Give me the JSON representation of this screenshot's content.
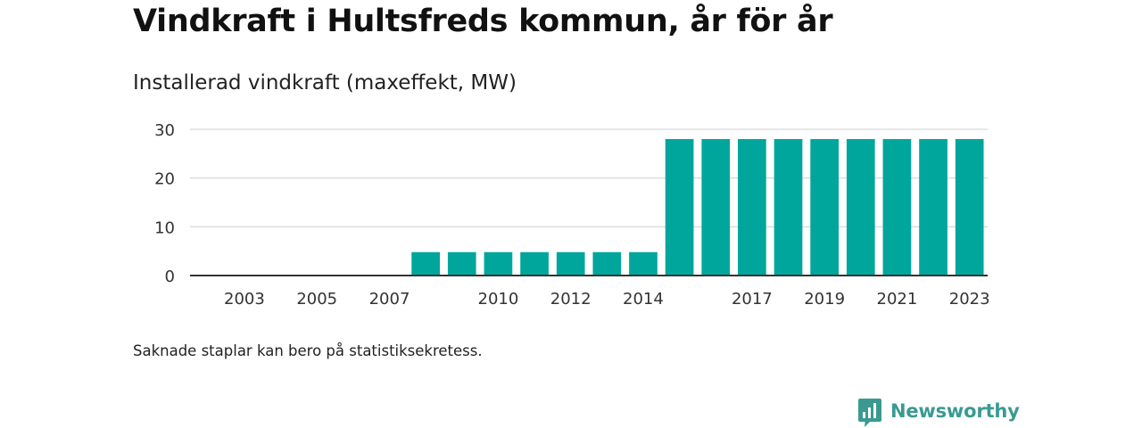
{
  "title": "Vindkraft i Hultsfreds kommun, år för år",
  "subtitle": "Installerad vindkraft (maxeffekt, MW)",
  "note": "Saknade staplar kan bero på statistiksekretess.",
  "brand": {
    "name": "Newsworthy",
    "icon": "newsworthy-logo-icon",
    "color": "#3a9a92"
  },
  "chart_data": {
    "type": "bar",
    "title": "Installerad vindkraft (maxeffekt, MW)",
    "xlabel": "",
    "ylabel": "",
    "categories": [
      "2002",
      "2003",
      "2004",
      "2005",
      "2006",
      "2007",
      "2008",
      "2009",
      "2010",
      "2011",
      "2012",
      "2013",
      "2014",
      "2015",
      "2016",
      "2017",
      "2018",
      "2019",
      "2020",
      "2021",
      "2022",
      "2023"
    ],
    "values": [
      0,
      0,
      0,
      0,
      0,
      0,
      4.8,
      4.8,
      4.8,
      4.8,
      4.8,
      4.8,
      4.8,
      28,
      28,
      28,
      28,
      28,
      28,
      28,
      28,
      28
    ],
    "x_tick_labels": [
      "2003",
      "2005",
      "2007",
      "2010",
      "2012",
      "2014",
      "2017",
      "2019",
      "2021",
      "2023"
    ],
    "y_ticks": [
      0,
      10,
      20,
      30
    ],
    "ylim": [
      0,
      30
    ],
    "grid": true,
    "legend": "none",
    "bar_color": "#00a69c",
    "grid_color": "#dddddd",
    "axis_color": "#333333"
  }
}
